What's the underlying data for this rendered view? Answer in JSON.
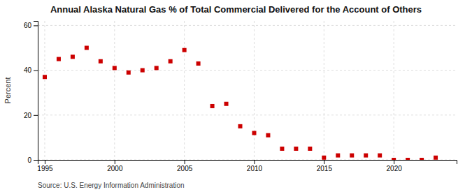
{
  "chart_data": {
    "type": "scatter",
    "title": "Annual Alaska Natural Gas % of Total Commercial Delivered for the Account of Others",
    "ylabel": "Percent",
    "source": "Source: U.S. Energy Information Administration",
    "x": [
      1995,
      1996,
      1997,
      1998,
      1999,
      2000,
      2001,
      2002,
      2003,
      2004,
      2005,
      2006,
      2007,
      2008,
      2009,
      2010,
      2011,
      2012,
      2013,
      2014,
      2015,
      2016,
      2017,
      2018,
      2019,
      2020,
      2021,
      2022,
      2023
    ],
    "values": [
      37,
      45,
      46,
      50,
      44,
      41,
      39,
      40,
      41,
      44,
      49,
      43,
      24,
      25,
      15,
      12,
      11,
      5,
      5,
      5,
      1,
      2,
      2,
      2,
      2,
      0,
      0,
      0,
      1
    ],
    "color": "#cc0000",
    "marker": "square",
    "xlim": [
      1994.5,
      2024.5
    ],
    "ylim": [
      0,
      62
    ],
    "xticks": [
      1995,
      2000,
      2005,
      2010,
      2015,
      2020
    ],
    "yticks": [
      0,
      20,
      40,
      60
    ],
    "grid": true
  }
}
